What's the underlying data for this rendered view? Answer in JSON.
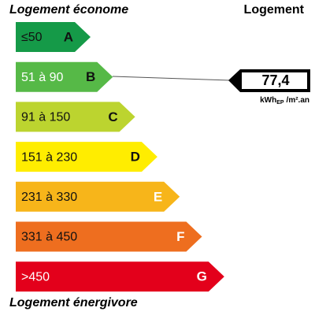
{
  "header": {
    "left": "Logement économe",
    "right": "Logement"
  },
  "footer": "Logement énergivore",
  "classes": [
    {
      "range": "≤50",
      "letter": "A",
      "color": "#159a48",
      "text_color": "#111111",
      "letter_color": "#111111"
    },
    {
      "range": "51 à 90",
      "letter": "B",
      "color": "#56b947",
      "text_color": "#ffffff",
      "letter_color": "#111111"
    },
    {
      "range": "91 à 150",
      "letter": "C",
      "color": "#bcd42f",
      "text_color": "#111111",
      "letter_color": "#111111"
    },
    {
      "range": "151 à 230",
      "letter": "D",
      "color": "#ffed00",
      "text_color": "#111111",
      "letter_color": "#111111"
    },
    {
      "range": "231 à 330",
      "letter": "E",
      "color": "#f7b51a",
      "text_color": "#111111",
      "letter_color": "#ffffff"
    },
    {
      "range": "331 à 450",
      "letter": "F",
      "color": "#ee6e1f",
      "text_color": "#111111",
      "letter_color": "#ffffff"
    },
    {
      "range": ">450",
      "letter": "G",
      "color": "#e3001b",
      "text_color": "#ffffff",
      "letter_color": "#ffffff"
    }
  ],
  "indicator": {
    "value": "77,4",
    "unit": "kWh",
    "unit_sub": "EP",
    "unit_suffix": "/m².an"
  }
}
